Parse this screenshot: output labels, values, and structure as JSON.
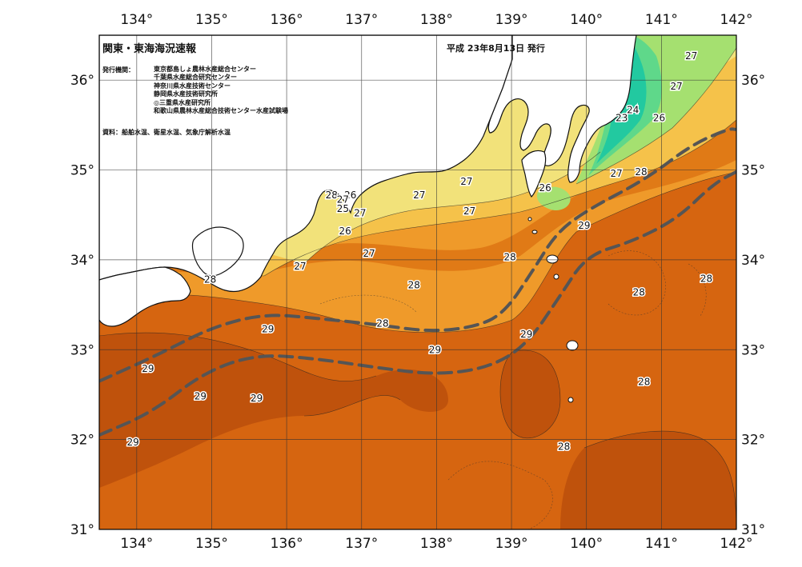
{
  "title": "関東・東海海況速報",
  "issue_date": "平成 23年8月13日 発行",
  "issuer_label": "発行機関：",
  "issuers": [
    "東京都島しょ農林水産総合センター",
    "千葉県水産総合研究センター",
    "神奈川県水産技術センター",
    "静岡県水産技術研究所",
    "◎三重県水産研究所",
    "和歌山県農林水産総合技術センター水産試験場"
  ],
  "source": "資料：船舶水温、衛星水温、気象庁解析水温",
  "axes": {
    "lon_labels": [
      "134°",
      "135°",
      "136°",
      "137°",
      "138°",
      "139°",
      "140°",
      "141°",
      "142°"
    ],
    "lat_labels": [
      "36°",
      "35°",
      "34°",
      "33°",
      "32°",
      "31°"
    ],
    "lon_range": [
      133.5,
      142
    ],
    "lat_range": [
      31,
      36.5
    ]
  },
  "colors": {
    "t23": "#22c9a0",
    "t24": "#5fd88a",
    "t25": "#a5e070",
    "t26": "#f2e27a",
    "t27": "#f5c24a",
    "t28": "#ef9a2a",
    "t28b": "#e07a16",
    "t29": "#d66510",
    "t29b": "#bf520c",
    "kuroshio": "#555555",
    "land": "#ffffff"
  },
  "temperature_labels": [
    {
      "text": "27",
      "lon": 141.4,
      "lat": 36.27
    },
    {
      "text": "27",
      "lon": 141.2,
      "lat": 35.93
    },
    {
      "text": "24",
      "lon": 140.62,
      "lat": 35.67
    },
    {
      "text": "23",
      "lon": 140.47,
      "lat": 35.58
    },
    {
      "text": "26",
      "lon": 140.97,
      "lat": 35.58
    },
    {
      "text": "27",
      "lon": 140.4,
      "lat": 34.96
    },
    {
      "text": "28",
      "lon": 140.73,
      "lat": 34.98
    },
    {
      "text": "26",
      "lon": 139.45,
      "lat": 34.8
    },
    {
      "text": "27",
      "lon": 138.4,
      "lat": 34.87
    },
    {
      "text": "27",
      "lon": 137.77,
      "lat": 34.72
    },
    {
      "text": "27",
      "lon": 138.44,
      "lat": 34.54
    },
    {
      "text": "28",
      "lon": 136.6,
      "lat": 34.72
    },
    {
      "text": "26",
      "lon": 136.85,
      "lat": 34.72
    },
    {
      "text": "27",
      "lon": 136.75,
      "lat": 34.67
    },
    {
      "text": "25",
      "lon": 136.75,
      "lat": 34.57
    },
    {
      "text": "27",
      "lon": 136.98,
      "lat": 34.52
    },
    {
      "text": "26",
      "lon": 136.78,
      "lat": 34.32
    },
    {
      "text": "29",
      "lon": 139.97,
      "lat": 34.38
    },
    {
      "text": "27",
      "lon": 137.1,
      "lat": 34.07
    },
    {
      "text": "27",
      "lon": 136.18,
      "lat": 33.93
    },
    {
      "text": "28",
      "lon": 138.98,
      "lat": 34.03
    },
    {
      "text": "28",
      "lon": 134.98,
      "lat": 33.78
    },
    {
      "text": "28",
      "lon": 137.7,
      "lat": 33.72
    },
    {
      "text": "28",
      "lon": 141.6,
      "lat": 33.79
    },
    {
      "text": "28",
      "lon": 140.7,
      "lat": 33.64
    },
    {
      "text": "28",
      "lon": 137.28,
      "lat": 33.29
    },
    {
      "text": "29",
      "lon": 135.75,
      "lat": 33.23
    },
    {
      "text": "29",
      "lon": 139.2,
      "lat": 33.17
    },
    {
      "text": "29",
      "lon": 137.98,
      "lat": 33.0
    },
    {
      "text": "29",
      "lon": 134.15,
      "lat": 32.79
    },
    {
      "text": "28",
      "lon": 140.77,
      "lat": 32.64
    },
    {
      "text": "29",
      "lon": 134.85,
      "lat": 32.48
    },
    {
      "text": "29",
      "lon": 135.6,
      "lat": 32.46
    },
    {
      "text": "29",
      "lon": 133.95,
      "lat": 31.97
    },
    {
      "text": "28",
      "lon": 139.7,
      "lat": 31.92
    }
  ],
  "kuroshio_axes": [
    {
      "name": "north",
      "points": [
        [
          133.5,
          32.65
        ],
        [
          134.3,
          32.95
        ],
        [
          135,
          33.25
        ],
        [
          135.7,
          33.4
        ],
        [
          136.4,
          33.35
        ],
        [
          137.2,
          33.28
        ],
        [
          137.9,
          33.2
        ],
        [
          138.5,
          33.25
        ],
        [
          138.9,
          33.4
        ],
        [
          139.3,
          33.9
        ],
        [
          139.6,
          34.3
        ],
        [
          140,
          34.55
        ],
        [
          140.8,
          34.9
        ],
        [
          141.4,
          35.28
        ],
        [
          141.9,
          35.46
        ],
        [
          142,
          35.45
        ]
      ]
    },
    {
      "name": "south",
      "points": [
        [
          133.5,
          32.05
        ],
        [
          134.2,
          32.3
        ],
        [
          134.9,
          32.75
        ],
        [
          135.6,
          32.95
        ],
        [
          136.4,
          32.9
        ],
        [
          137.2,
          32.8
        ],
        [
          138,
          32.72
        ],
        [
          138.7,
          32.8
        ],
        [
          139.2,
          33.05
        ],
        [
          139.65,
          33.6
        ],
        [
          140,
          34.05
        ],
        [
          140.6,
          34.2
        ],
        [
          141.2,
          34.45
        ],
        [
          141.7,
          34.85
        ],
        [
          142,
          34.98
        ]
      ]
    }
  ]
}
